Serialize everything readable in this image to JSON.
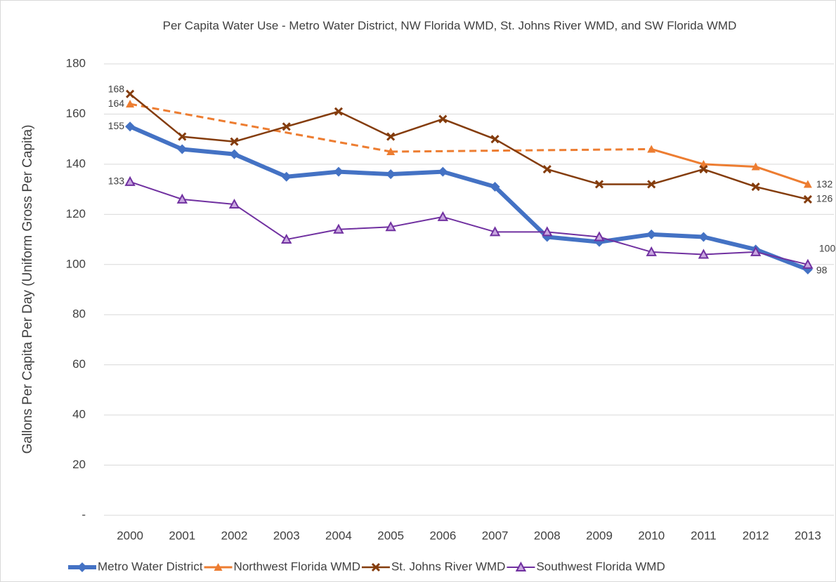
{
  "chart_data": {
    "type": "line",
    "title": "Per Capita Water Use - Metro Water District, NW Florida WMD, St. Johns River WMD,  and SW Florida WMD",
    "y_label": "Gallons Per Capita Per Day (Uniform Gross Per Capita)",
    "categories": [
      "2000",
      "2001",
      "2002",
      "2003",
      "2004",
      "2005",
      "2006",
      "2007",
      "2008",
      "2009",
      "2010",
      "2011",
      "2012",
      "2013"
    ],
    "ylim": [
      0,
      180
    ],
    "yticks": [
      {
        "value": 0,
        "label": "-"
      },
      20,
      40,
      60,
      80,
      100,
      120,
      140,
      160,
      180
    ],
    "grid": true,
    "legend": "bottom",
    "connect_gaps": "dashed",
    "data_labels": [
      0,
      13
    ],
    "series": [
      {
        "name": "Metro Water District",
        "color": "#4472c4",
        "marker": "diamond",
        "values": [
          155,
          146,
          144,
          135,
          137,
          136,
          137,
          131,
          111,
          109,
          112,
          111,
          106,
          98
        ]
      },
      {
        "name": "Northwest Florida WMD",
        "color": "#ed7d31",
        "marker": "triangle",
        "values": [
          164,
          null,
          null,
          null,
          null,
          145,
          null,
          null,
          null,
          null,
          146,
          140,
          139,
          132
        ]
      },
      {
        "name": "St. Johns River WMD",
        "color": "#843c0c",
        "marker": "cross",
        "values": [
          168,
          151,
          149,
          155,
          161,
          151,
          158,
          150,
          138,
          132,
          132,
          138,
          131,
          126
        ]
      },
      {
        "name": "Southwest Florida WMD",
        "color": "#7030a0",
        "marker": "triangle-open",
        "values": [
          133,
          126,
          124,
          110,
          114,
          115,
          119,
          113,
          113,
          111,
          105,
          104,
          105,
          100
        ]
      }
    ]
  }
}
